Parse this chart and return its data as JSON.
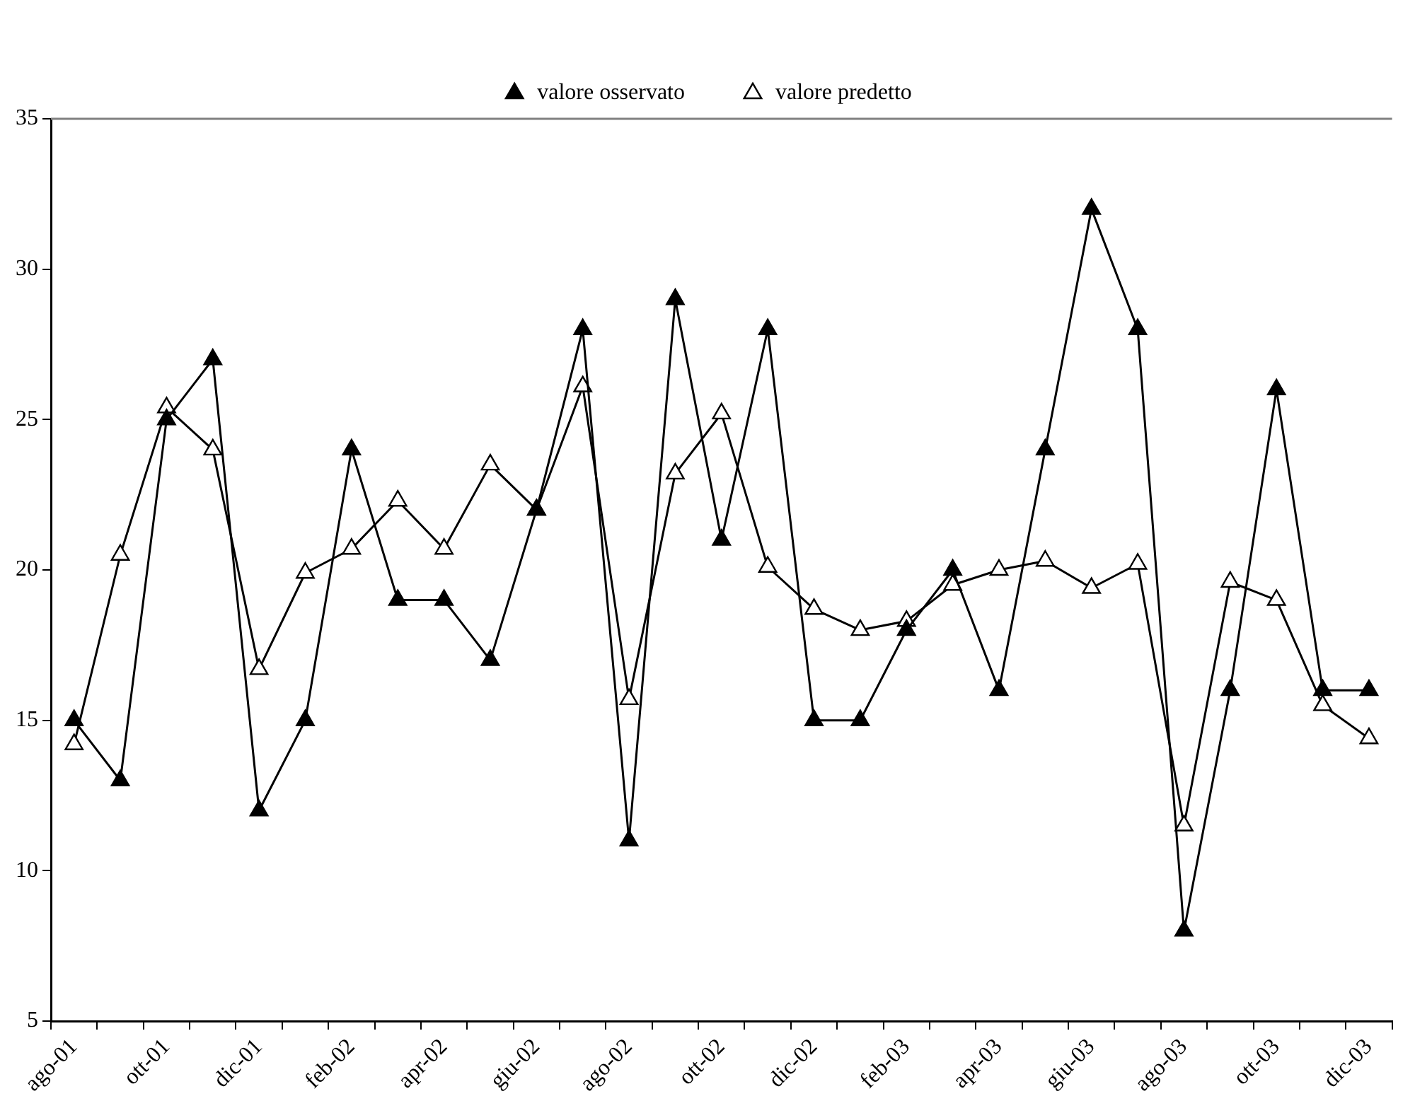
{
  "chart_data": {
    "type": "line",
    "categories": [
      "ago-01",
      null,
      "ott-01",
      null,
      "dic-01",
      null,
      "feb-02",
      null,
      "apr-02",
      null,
      "giu-02",
      null,
      "ago-02",
      null,
      "ott-02",
      null,
      "dic-02",
      null,
      "feb-03",
      null,
      "apr-03",
      null,
      "giu-03",
      null,
      "ago-03",
      null,
      "ott-03",
      null,
      "dic-03"
    ],
    "series": [
      {
        "name": "valore osservato",
        "color": "#000000",
        "values": [
          15,
          13,
          25,
          27,
          12,
          15,
          24,
          19,
          19,
          17,
          22,
          28,
          11,
          29,
          21,
          28,
          15,
          15,
          18,
          20,
          16,
          24,
          32,
          28,
          8,
          16,
          26,
          16,
          16
        ]
      },
      {
        "name": "valore predetto",
        "color": "#000000",
        "colors": [
          "#ffffff",
          "#ffffff",
          "#ffffff",
          "#ffffff",
          "#ffffff",
          "#ffffff",
          "#ffffff",
          "#ffffff",
          "#ffffff",
          "#ffffff",
          "#ffffff",
          "#ffffff",
          "#ffffff",
          "#ffffff",
          "#ffffff",
          "#ffffff",
          "#ffffff",
          "#ffffff",
          "#ffffff",
          "#ffffff",
          "#ffffff",
          "#ffffff",
          "#ffffff",
          "#ffffff",
          "#ffffff",
          "#ffffff",
          "#ffffff",
          "#ffffff",
          "#ffffff"
        ],
        "values": [
          14.2,
          20.5,
          25.4,
          24,
          16.7,
          19.9,
          20.7,
          22.3,
          20.7,
          23.5,
          22,
          26.1,
          15.7,
          23.2,
          25.2,
          20.1,
          18.7,
          18,
          18.3,
          19.5,
          20,
          20.3,
          19.4,
          20.2,
          11.5,
          19.6,
          19,
          15.5,
          14.4
        ]
      }
    ],
    "ylim": [
      5,
      35
    ],
    "yticks": [
      5,
      10,
      15,
      20,
      25,
      30,
      35
    ],
    "grid": false,
    "legend": "top",
    "marker": "triangle",
    "line_style": "solid"
  }
}
